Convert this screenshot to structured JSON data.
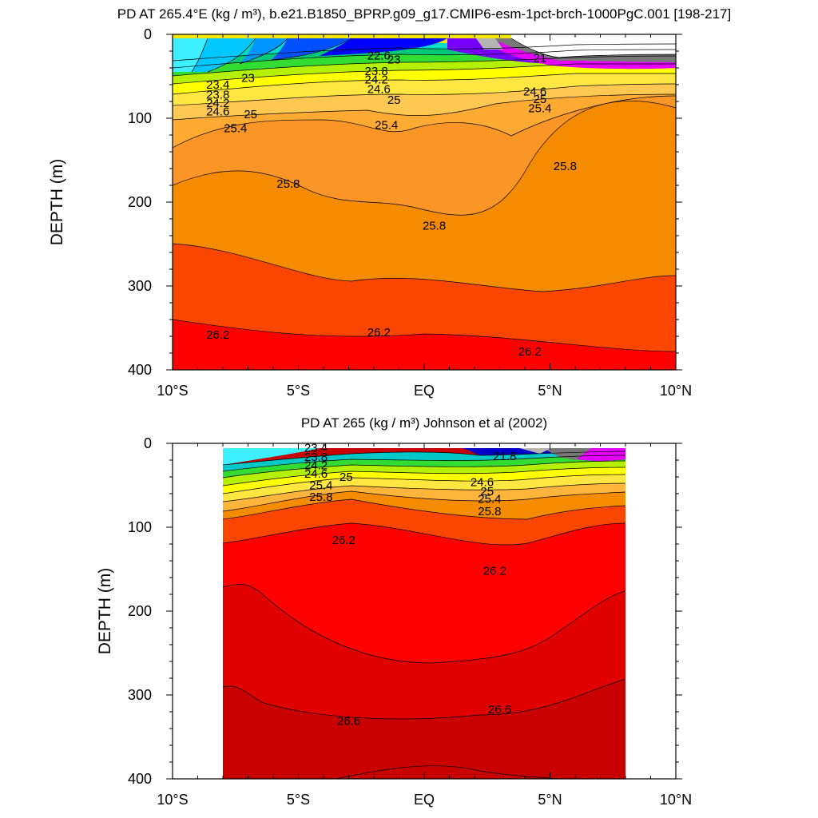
{
  "chart_data": [
    {
      "type": "contour",
      "title": "PD AT 265.4°E (kg / m³), b.e21.B1850_BPRP.g09_g17.CMIP6-esm-1pct-brch-1000PgC.001 [198-217]",
      "ylabel": "DEPTH (m)",
      "xlim": [
        -10,
        10
      ],
      "ylim": [
        400,
        0
      ],
      "xticks": [
        "10°S",
        "5°S",
        "EQ",
        "5°N",
        "10°N"
      ],
      "yticks": [
        "0",
        "100",
        "200",
        "300",
        "400"
      ],
      "x_extent": [
        -10,
        10
      ],
      "contour_interval": 0.2,
      "contour_labels": [
        {
          "value": "22.6",
          "x": -1.8,
          "y": 25
        },
        {
          "value": "23",
          "x": -1.2,
          "y": 30
        },
        {
          "value": "23.4",
          "x": -8.2,
          "y": 60
        },
        {
          "value": "23",
          "x": -7.0,
          "y": 52
        },
        {
          "value": "23.8",
          "x": -8.2,
          "y": 72
        },
        {
          "value": "24.2",
          "x": -8.2,
          "y": 82
        },
        {
          "value": "24.6",
          "x": -8.2,
          "y": 92
        },
        {
          "value": "25",
          "x": -6.9,
          "y": 95
        },
        {
          "value": "25.4",
          "x": -7.5,
          "y": 112
        },
        {
          "value": "23.8",
          "x": -1.9,
          "y": 44
        },
        {
          "value": "24.2",
          "x": -1.9,
          "y": 54
        },
        {
          "value": "24.6",
          "x": -1.8,
          "y": 65
        },
        {
          "value": "25",
          "x": -1.2,
          "y": 78
        },
        {
          "value": "25.4",
          "x": -1.5,
          "y": 108
        },
        {
          "value": "25.8",
          "x": -5.4,
          "y": 178
        },
        {
          "value": "25.8",
          "x": 0.4,
          "y": 228
        },
        {
          "value": "25.8",
          "x": 5.6,
          "y": 157
        },
        {
          "value": "21",
          "x": 4.6,
          "y": 28
        },
        {
          "value": "24.6",
          "x": 4.4,
          "y": 68
        },
        {
          "value": "25",
          "x": 4.6,
          "y": 77
        },
        {
          "value": "25.4",
          "x": 4.6,
          "y": 88
        },
        {
          "value": "26.2",
          "x": -8.2,
          "y": 358
        },
        {
          "value": "26.2",
          "x": -1.8,
          "y": 355
        },
        {
          "value": "26.2",
          "x": 4.2,
          "y": 378
        }
      ]
    },
    {
      "type": "contour",
      "title": "PD AT 265 (kg / m³) Johnson et al (2002)",
      "ylabel": "DEPTH (m)",
      "xlim": [
        -10,
        10
      ],
      "ylim": [
        400,
        0
      ],
      "xticks": [
        "10°S",
        "5°S",
        "EQ",
        "5°N",
        "10°N"
      ],
      "yticks": [
        "0",
        "100",
        "200",
        "300",
        "400"
      ],
      "x_extent": [
        -8,
        8
      ],
      "contour_interval": 0.2,
      "contour_labels": [
        {
          "value": "23.4",
          "x": -4.3,
          "y": 5
        },
        {
          "value": "23.8",
          "x": -4.3,
          "y": 16
        },
        {
          "value": "24.2",
          "x": -4.3,
          "y": 26
        },
        {
          "value": "24.6",
          "x": -4.3,
          "y": 36
        },
        {
          "value": "25",
          "x": -3.1,
          "y": 40
        },
        {
          "value": "25.4",
          "x": -4.1,
          "y": 50
        },
        {
          "value": "25.8",
          "x": -4.1,
          "y": 64
        },
        {
          "value": "21.8",
          "x": 3.2,
          "y": 15
        },
        {
          "value": "24.6",
          "x": 2.3,
          "y": 46
        },
        {
          "value": "25",
          "x": 2.5,
          "y": 57
        },
        {
          "value": "25.4",
          "x": 2.6,
          "y": 66
        },
        {
          "value": "25.8",
          "x": 2.6,
          "y": 81
        },
        {
          "value": "26.2",
          "x": -3.2,
          "y": 115
        },
        {
          "value": "26.2",
          "x": 2.8,
          "y": 152
        },
        {
          "value": "26.6",
          "x": -3.0,
          "y": 331
        },
        {
          "value": "26.6",
          "x": 3.0,
          "y": 317
        }
      ]
    }
  ]
}
